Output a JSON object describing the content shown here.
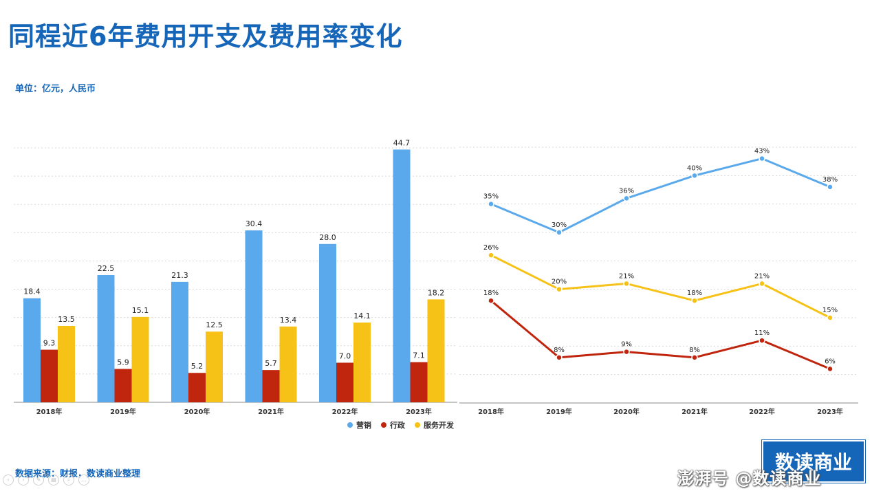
{
  "title": "同程近6年费用开支及费用率变化",
  "unit_label": "单位：亿元，人民币",
  "source_label": "数据来源：财报，数读商业整理",
  "logo_text": "数读商业",
  "watermark_text": "澎湃号 @数读商业",
  "colors": {
    "marketing": "#5aa9ec",
    "admin": "#c0260e",
    "rd": "#f7c217",
    "brand": "#1565b8"
  },
  "chart_data": [
    {
      "type": "bar",
      "categories": [
        "2018年",
        "2019年",
        "2020年",
        "2021年",
        "2022年",
        "2023年"
      ],
      "series": [
        {
          "name": "营销",
          "values": [
            18.4,
            22.5,
            21.3,
            30.4,
            28.0,
            44.7
          ]
        },
        {
          "name": "行政",
          "values": [
            9.3,
            5.9,
            5.2,
            5.7,
            7.0,
            7.1
          ]
        },
        {
          "name": "服务开发",
          "values": [
            13.5,
            15.1,
            12.5,
            13.4,
            14.1,
            18.2
          ]
        }
      ],
      "ylim": [
        0,
        45
      ],
      "grid": true,
      "legend": "bottom-right"
    },
    {
      "type": "line",
      "categories": [
        "2018年",
        "2019年",
        "2020年",
        "2021年",
        "2022年",
        "2023年"
      ],
      "series": [
        {
          "name": "营销",
          "values": [
            35,
            30,
            36,
            40,
            43,
            38
          ]
        },
        {
          "name": "服务开发",
          "values": [
            26,
            20,
            21,
            18,
            21,
            15
          ]
        },
        {
          "name": "行政",
          "values": [
            18,
            8,
            9,
            8,
            11,
            6
          ]
        }
      ],
      "value_suffix": "%",
      "ylim": [
        0,
        45
      ],
      "grid": true
    }
  ]
}
